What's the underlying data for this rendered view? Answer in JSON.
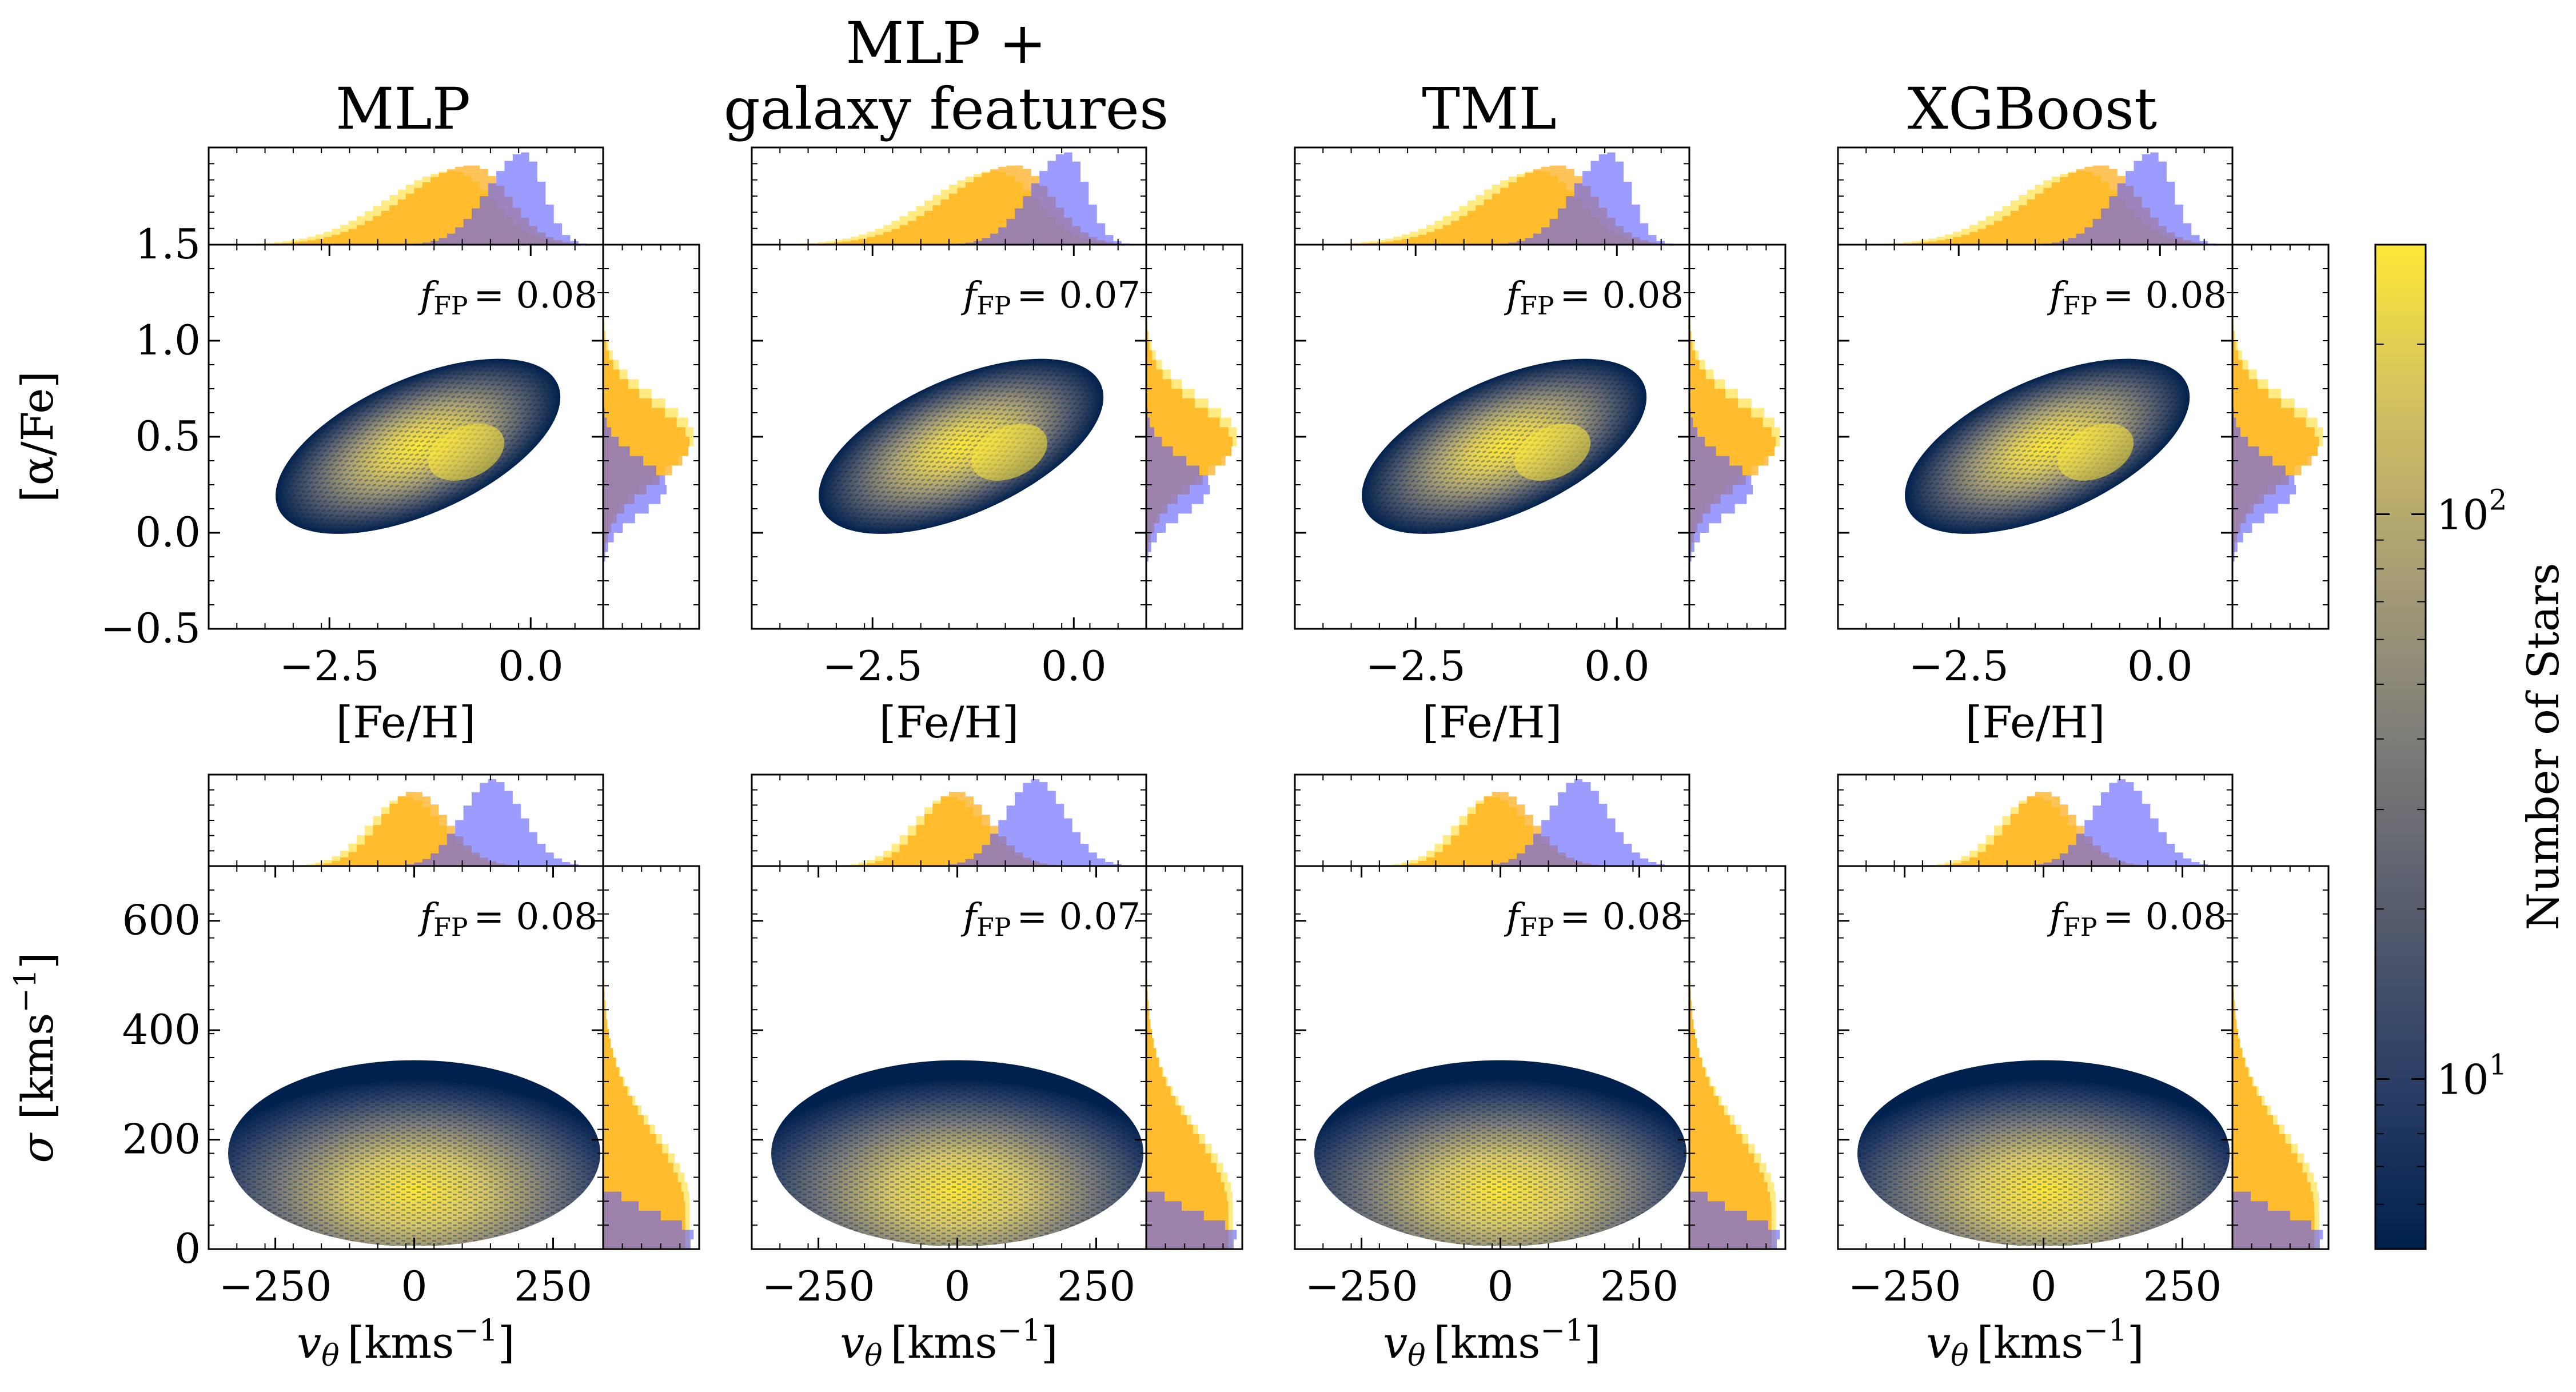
{
  "figure": {
    "colors": {
      "accreted": "#ffa500",
      "accreted_light": "#ffe24d",
      "insitu": "#5a5aff",
      "overlap": "#7a3fa0",
      "cmap": [
        "#00204d",
        "#2b3f66",
        "#575d6d",
        "#7c7b78",
        "#a69d75",
        "#d2c060",
        "#fee838"
      ]
    }
  },
  "chart_data": {
    "type": "heatmap",
    "panel_titles": [
      "MLP",
      "MLP +\ngalaxy features",
      "TML",
      "XGBoost"
    ],
    "f_fp_label": "f",
    "f_fp_sub": "FP",
    "f_fp_values": [
      "0.08",
      "0.07",
      "0.08",
      "0.08"
    ],
    "f_fp_text": [
      "= 0.08",
      "= 0.07",
      "= 0.08",
      "= 0.08"
    ],
    "chemistry": {
      "xlabel": "[Fe/H]",
      "ylabel": "[α/Fe]",
      "xlim": [
        -4.0,
        0.9
      ],
      "ylim": [
        -0.5,
        1.5
      ],
      "xticks": [
        -2.5,
        0.0
      ],
      "xtick_labels": [
        "−2.5",
        "0.0"
      ],
      "yticks": [
        -0.5,
        0.0,
        0.5,
        1.0,
        1.5
      ],
      "ytick_labels": [
        "−0.5",
        "0.0",
        "0.5",
        "1.0",
        "1.5"
      ]
    },
    "kinematics": {
      "xlabel": "v",
      "xlabel_sub": "θ",
      "xlabel_unit": "[kms",
      "xlabel_exp": "−1",
      "xlabel_close": "]",
      "ylabel": "σ [kms",
      "ylabel_exp": "−1",
      "ylabel_close": "]",
      "xlim": [
        -370,
        340
      ],
      "ylim": [
        0,
        700
      ],
      "xticks": [
        -250,
        0,
        250
      ],
      "xtick_labels": [
        "−250",
        "0",
        "250"
      ],
      "yticks": [
        0,
        200,
        400,
        600
      ],
      "ytick_labels": [
        "0",
        "200",
        "400",
        "600"
      ]
    },
    "colorbar": {
      "label": "Number of Stars",
      "scale": "log",
      "range": [
        5,
        300
      ],
      "ticks": [
        10,
        100
      ],
      "tick_base": [
        "10",
        "10"
      ],
      "tick_exp": [
        "1",
        "2"
      ]
    }
  }
}
